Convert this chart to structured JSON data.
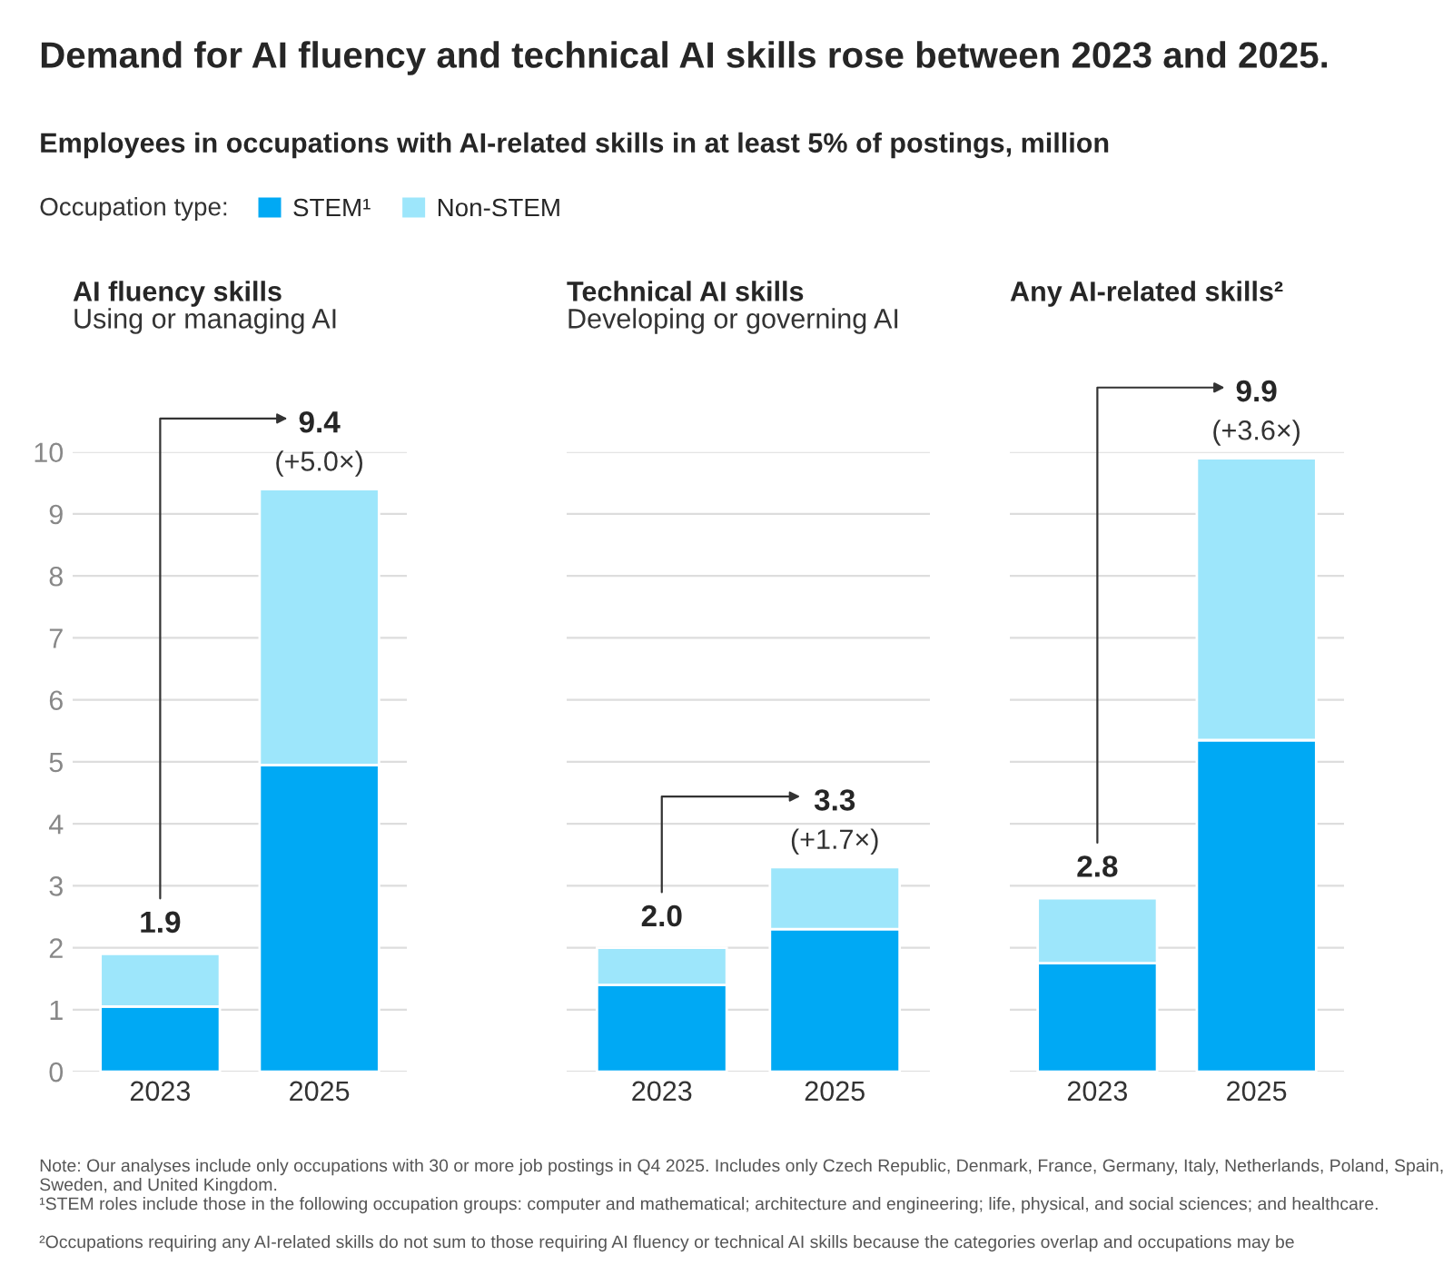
{
  "chart_data": [
    {
      "type": "bar",
      "stacked": true,
      "title": "AI fluency skills",
      "subtitle": "Using or managing AI",
      "legend_title": "Occupation type:",
      "legend": "top",
      "categories": [
        "2023",
        "2025"
      ],
      "series": [
        {
          "name": "STEM¹",
          "color": "#00a9f4",
          "values": [
            1.05,
            4.95
          ]
        },
        {
          "name": "Non-STEM",
          "color": "#9de6fb",
          "values": [
            0.85,
            4.45
          ]
        }
      ],
      "totals": [
        "1.9",
        "9.4"
      ],
      "ylim": [
        0,
        10
      ],
      "yticks": [
        0,
        1,
        2,
        3,
        4,
        5,
        6,
        7,
        8,
        9,
        10
      ],
      "grid": "y",
      "annotations": [
        "Demand for AI fluency and technical AI skills rose between 2023 and 2025.",
        "Employees in occupations with AI-related skills in at least 5% of postings, million",
        {
          "text": "(+5.0×)",
          "x": "2025",
          "y": 9.4
        },
        "Note: Our analyses include only occupations with 30 or more job postings in Q4 2025. Includes only Czech Republic, Denmark, France, Germany, Italy, Netherlands, Poland, Spain, Sweden, and United Kingdom.",
        "¹STEM roles include those in the following occupation groups: computer and mathematical; architecture and engineering; life, physical, and social sciences; and healthcare.",
        "²Occupations requiring any AI-related skills do not sum to those requiring AI fluency or technical AI skills because the categories overlap and occupations may be"
      ]
    },
    {
      "type": "bar",
      "stacked": true,
      "title": "Technical AI skills",
      "subtitle": "Developing or governing AI",
      "categories": [
        "2023",
        "2025"
      ],
      "series": [
        {
          "color": "#00a9f4",
          "values": [
            1.4,
            2.3
          ]
        },
        {
          "color": "#9de6fb",
          "values": [
            0.6,
            1.0
          ]
        }
      ],
      "totals": [
        "2.0",
        "3.3"
      ],
      "ylim": [
        0,
        10
      ],
      "yticks": [
        0,
        1,
        2,
        3,
        4,
        5,
        6,
        7,
        8,
        9,
        10
      ],
      "grid": "y",
      "tick_labels": "x",
      "annotations": [
        {
          "text": "(+1.7×)",
          "x": "2025",
          "y": 3.3
        }
      ]
    },
    {
      "type": "bar",
      "stacked": true,
      "title": "Any AI-related skills²",
      "categories": [
        "2023",
        "2025"
      ],
      "series": [
        {
          "color": "#00a9f4",
          "values": [
            1.75,
            5.35
          ]
        },
        {
          "color": "#9de6fb",
          "values": [
            1.05,
            4.55
          ]
        }
      ],
      "totals": [
        "2.8",
        "9.9"
      ],
      "ylim": [
        0,
        10
      ],
      "yticks": [
        0,
        1,
        2,
        3,
        4,
        5,
        6,
        7,
        8,
        9,
        10
      ],
      "grid": "y",
      "tick_labels": "x",
      "annotations": [
        {
          "text": "(+3.6×)",
          "x": "2025",
          "y": 9.9
        }
      ]
    }
  ]
}
